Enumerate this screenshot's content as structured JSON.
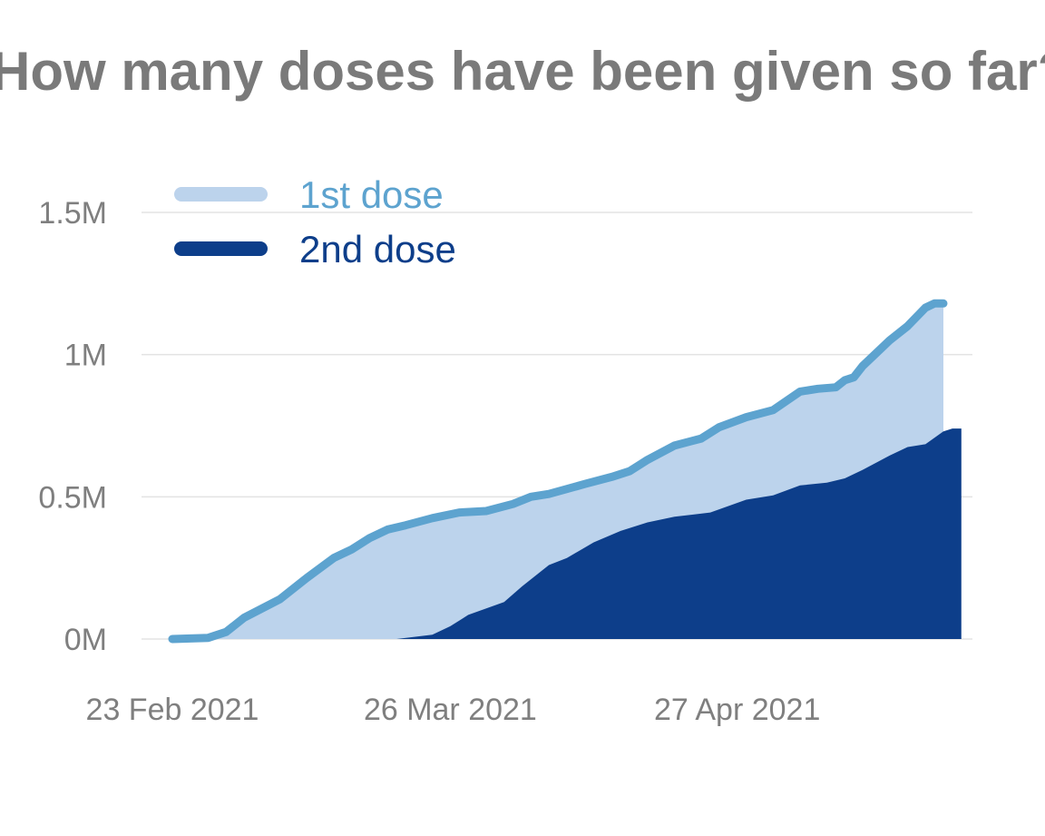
{
  "chart_data": {
    "type": "area",
    "title": "How many doses have been given so far?",
    "xlabel": "",
    "ylabel": "",
    "x_start": "2021-02-23",
    "x_end": "2021-05-16",
    "ylim": [
      0,
      1500000
    ],
    "y_ticks": [
      {
        "value": 0,
        "label": "0M"
      },
      {
        "value": 500000,
        "label": "0.5M"
      },
      {
        "value": 1000000,
        "label": "1M"
      },
      {
        "value": 1500000,
        "label": "1.5M"
      }
    ],
    "x_ticks": [
      {
        "date": "2021-02-23",
        "label": "23 Feb 2021"
      },
      {
        "date": "2021-03-26",
        "label": "26 Mar 2021"
      },
      {
        "date": "2021-04-27",
        "label": "27 Apr 2021"
      }
    ],
    "grid": "horizontal",
    "legend_placement": "top-left",
    "series": [
      {
        "name": "1st dose",
        "color": "#5da3cf",
        "fill": "#bcd3ec",
        "points": [
          [
            "2021-02-23",
            0
          ],
          [
            "2021-02-27",
            4000
          ],
          [
            "2021-03-01",
            25000
          ],
          [
            "2021-03-03",
            75000
          ],
          [
            "2021-03-07",
            140000
          ],
          [
            "2021-03-10",
            215000
          ],
          [
            "2021-03-13",
            285000
          ],
          [
            "2021-03-15",
            315000
          ],
          [
            "2021-03-17",
            355000
          ],
          [
            "2021-03-19",
            385000
          ],
          [
            "2021-03-21",
            400000
          ],
          [
            "2021-03-24",
            425000
          ],
          [
            "2021-03-27",
            445000
          ],
          [
            "2021-03-30",
            450000
          ],
          [
            "2021-04-02",
            475000
          ],
          [
            "2021-04-04",
            500000
          ],
          [
            "2021-04-06",
            510000
          ],
          [
            "2021-04-10",
            545000
          ],
          [
            "2021-04-13",
            570000
          ],
          [
            "2021-04-15",
            590000
          ],
          [
            "2021-04-17",
            630000
          ],
          [
            "2021-04-20",
            680000
          ],
          [
            "2021-04-23",
            705000
          ],
          [
            "2021-04-25",
            745000
          ],
          [
            "2021-04-28",
            780000
          ],
          [
            "2021-05-01",
            805000
          ],
          [
            "2021-05-04",
            870000
          ],
          [
            "2021-05-06",
            880000
          ],
          [
            "2021-05-08",
            885000
          ],
          [
            "2021-05-09",
            910000
          ],
          [
            "2021-05-10",
            920000
          ],
          [
            "2021-05-11",
            960000
          ],
          [
            "2021-05-12",
            990000
          ],
          [
            "2021-05-14",
            1050000
          ],
          [
            "2021-05-16",
            1100000
          ],
          [
            "2021-05-18",
            1165000
          ],
          [
            "2021-05-19",
            1180000
          ],
          [
            "2021-05-20",
            1180000
          ]
        ]
      },
      {
        "name": "2nd dose",
        "color": "#0d3e8a",
        "fill": "#0d3e8a",
        "points": [
          [
            "2021-02-23",
            0
          ],
          [
            "2021-03-20",
            0
          ],
          [
            "2021-03-24",
            15000
          ],
          [
            "2021-03-26",
            45000
          ],
          [
            "2021-03-28",
            85000
          ],
          [
            "2021-04-01",
            130000
          ],
          [
            "2021-04-03",
            185000
          ],
          [
            "2021-04-06",
            260000
          ],
          [
            "2021-04-08",
            285000
          ],
          [
            "2021-04-11",
            340000
          ],
          [
            "2021-04-14",
            380000
          ],
          [
            "2021-04-17",
            410000
          ],
          [
            "2021-04-20",
            430000
          ],
          [
            "2021-04-24",
            445000
          ],
          [
            "2021-04-28",
            490000
          ],
          [
            "2021-05-01",
            505000
          ],
          [
            "2021-05-04",
            540000
          ],
          [
            "2021-05-07",
            550000
          ],
          [
            "2021-05-09",
            565000
          ],
          [
            "2021-05-11",
            595000
          ],
          [
            "2021-05-14",
            645000
          ],
          [
            "2021-05-16",
            675000
          ],
          [
            "2021-05-18",
            685000
          ],
          [
            "2021-05-20",
            730000
          ],
          [
            "2021-05-21",
            740000
          ],
          [
            "2021-05-22",
            740000
          ]
        ]
      }
    ]
  }
}
